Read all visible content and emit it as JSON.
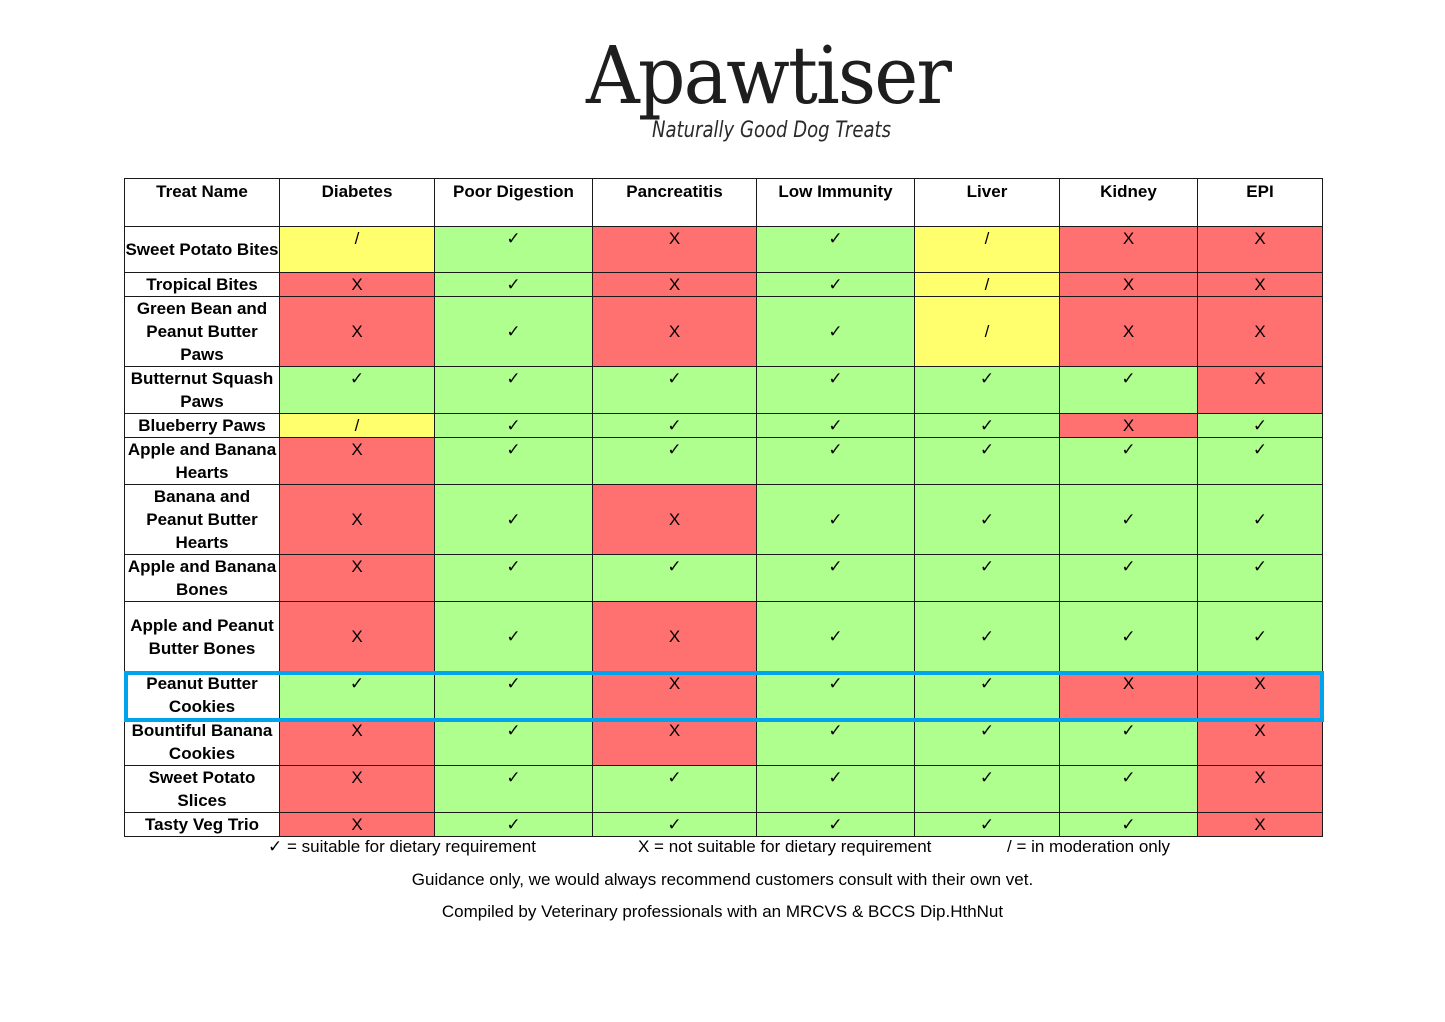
{
  "logo": {
    "name": "Apawtiser",
    "tagline": "Naturally Good Dog Treats"
  },
  "colors": {
    "suitable": "#aeff8e",
    "not_suitable": "#ff7070",
    "moderation": "#ffff6e",
    "highlight": "#00a3ee"
  },
  "table": {
    "headers": [
      "Treat Name",
      "Diabetes",
      "Poor Digestion",
      "Pancreatitis",
      "Low Immunity",
      "Liver",
      "Kidney",
      "EPI"
    ],
    "rows": [
      {
        "name": "Sweet Potato Bites",
        "values": [
          "/",
          "✓",
          "X",
          "✓",
          "/",
          "X",
          "X"
        ]
      },
      {
        "name": "Tropical Bites",
        "values": [
          "X",
          "✓",
          "X",
          "✓",
          "/",
          "X",
          "X"
        ]
      },
      {
        "name": "Green Bean and Peanut Butter Paws",
        "values": [
          "X",
          "✓",
          "X",
          "✓",
          "/",
          "X",
          "X"
        ]
      },
      {
        "name": "Butternut Squash Paws",
        "values": [
          "✓",
          "✓",
          "✓",
          "✓",
          "✓",
          "✓",
          "X"
        ]
      },
      {
        "name": "Blueberry Paws",
        "values": [
          "/",
          "✓",
          "✓",
          "✓",
          "✓",
          "X",
          "✓"
        ]
      },
      {
        "name": "Apple and Banana Hearts",
        "values": [
          "X",
          "✓",
          "✓",
          "✓",
          "✓",
          "✓",
          "✓"
        ]
      },
      {
        "name": "Banana and Peanut Butter Hearts",
        "values": [
          "X",
          "✓",
          "X",
          "✓",
          "✓",
          "✓",
          "✓"
        ]
      },
      {
        "name": "Apple and Banana Bones",
        "values": [
          "X",
          "✓",
          "✓",
          "✓",
          "✓",
          "✓",
          "✓"
        ]
      },
      {
        "name": "Apple and Peanut Butter Bones",
        "values": [
          "X",
          "✓",
          "X",
          "✓",
          "✓",
          "✓",
          "✓"
        ]
      },
      {
        "name": "Peanut Butter Cookies",
        "values": [
          "✓",
          "✓",
          "X",
          "✓",
          "✓",
          "X",
          "X"
        ],
        "highlighted": true
      },
      {
        "name": "Bountiful Banana Cookies",
        "values": [
          "X",
          "✓",
          "X",
          "✓",
          "✓",
          "✓",
          "X"
        ]
      },
      {
        "name": "Sweet Potato Slices",
        "values": [
          "X",
          "✓",
          "✓",
          "✓",
          "✓",
          "✓",
          "X"
        ]
      },
      {
        "name": "Tasty Veg Trio",
        "values": [
          "X",
          "✓",
          "✓",
          "✓",
          "✓",
          "✓",
          "X"
        ]
      }
    ]
  },
  "legend": {
    "suitable": "✓ = suitable for dietary requirement",
    "not_suitable": "X = not suitable for dietary requirement",
    "moderation": "/ = in moderation only"
  },
  "footer": {
    "guidance": "Guidance only, we would always recommend customers consult with their own vet.",
    "compiled": "Compiled by Veterinary professionals with an MRCVS & BCCS Dip.HthNut"
  }
}
